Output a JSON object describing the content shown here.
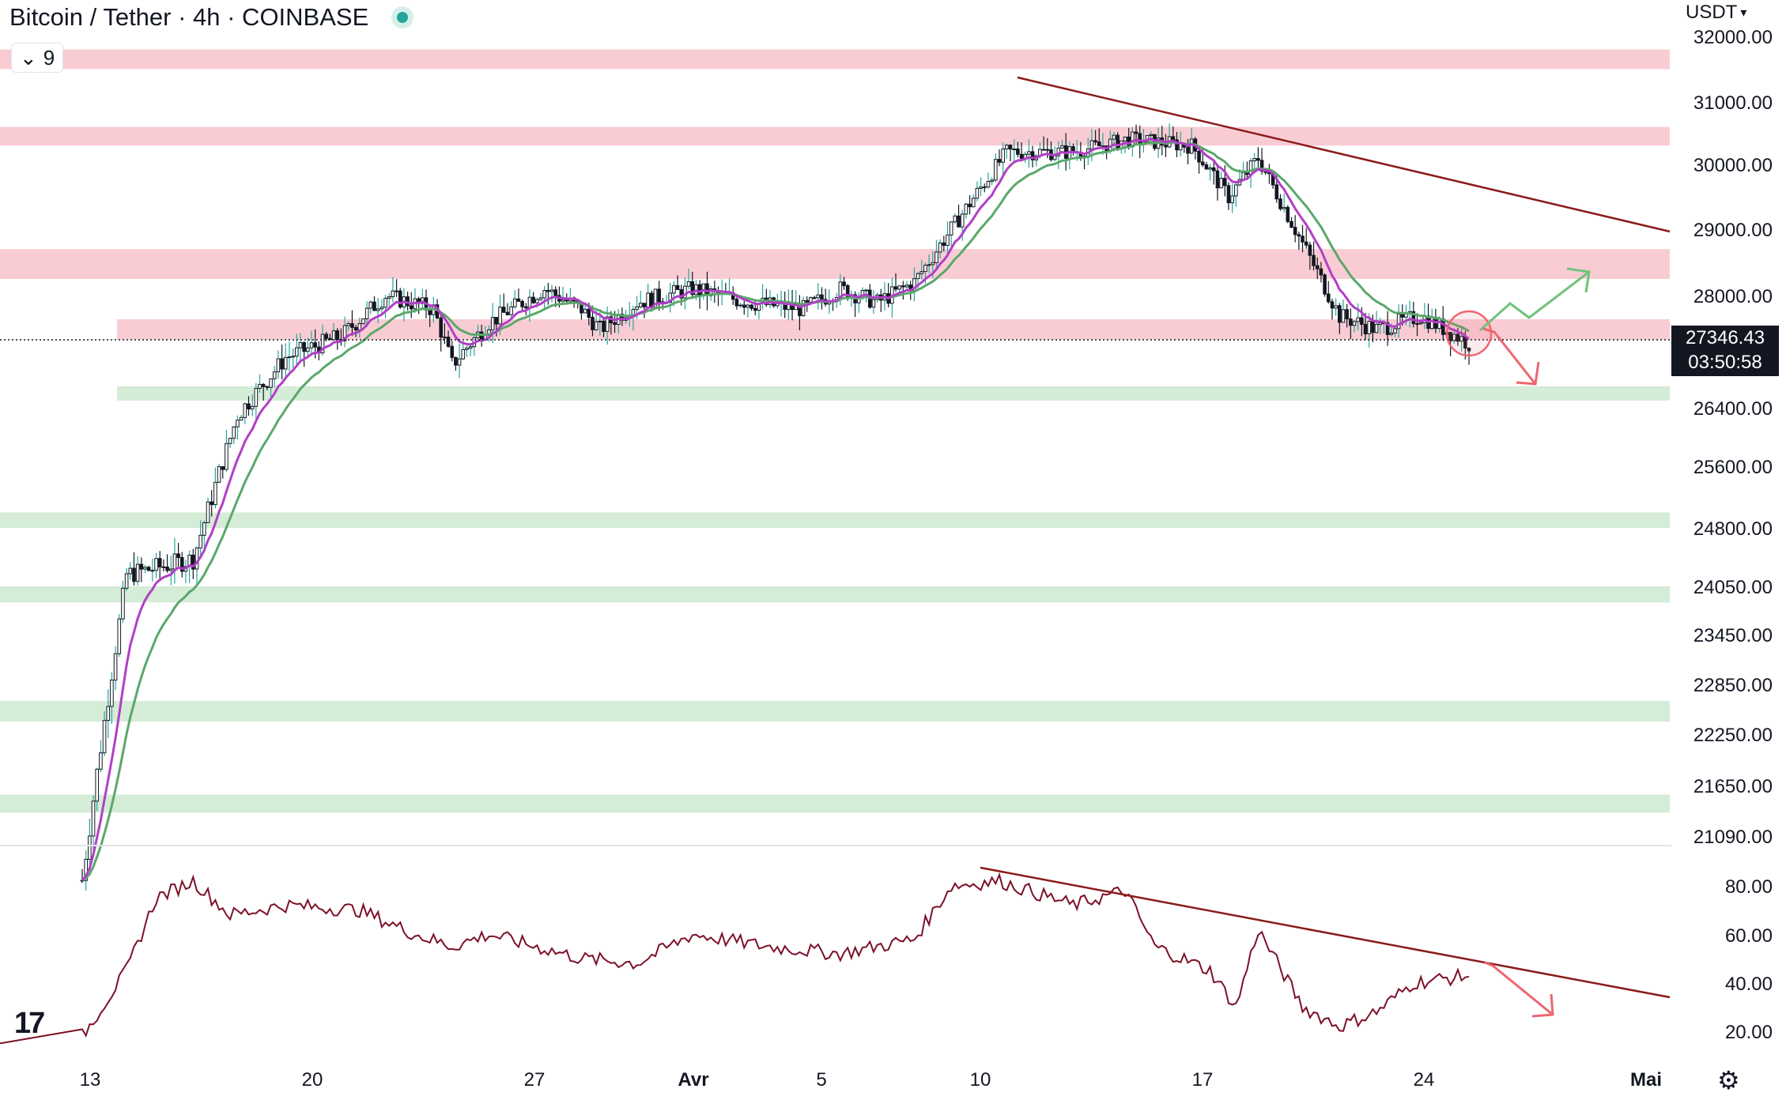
{
  "header": {
    "title": "Bitcoin / Tether · 4h · COINBASE",
    "indicator_badge": "9",
    "currency": "USDT"
  },
  "chart_data": {
    "type": "candlestick",
    "symbol": "Bitcoin / Tether",
    "interval": "4h",
    "exchange": "COINBASE",
    "last_price": "27346.43",
    "countdown": "03:50:58",
    "y_axis_ticks": [
      "32000.00",
      "31000.00",
      "30000.00",
      "29000.00",
      "28000.00",
      "27346.43",
      "26400.00",
      "25600.00",
      "24800.00",
      "24050.00",
      "23450.00",
      "22850.00",
      "22250.00",
      "21650.00",
      "21090.00"
    ],
    "x_axis_ticks": [
      "13",
      "20",
      "27",
      "Avr",
      "5",
      "10",
      "17",
      "24",
      "Mai"
    ],
    "rsi_ticks": [
      "80.00",
      "60.00",
      "40.00",
      "20.00"
    ],
    "resistance_zones": [
      [
        31500,
        31800
      ],
      [
        30300,
        30600
      ],
      [
        28250,
        28700
      ],
      [
        27350,
        27650
      ]
    ],
    "support_zones": [
      [
        26500,
        26700
      ],
      [
        24800,
        25000
      ],
      [
        23850,
        24050
      ],
      [
        22400,
        22650
      ],
      [
        21350,
        21550
      ]
    ],
    "colors": {
      "up": "#26a69a",
      "down": "#131722",
      "ema_fast": "#b13fc7",
      "ema_slow": "#5aa86a",
      "resistance": "#f9ccd3",
      "support": "#d5ecd7",
      "trend": "#8b1a1a",
      "rsi": "#7d1128",
      "bull_arrow": "#70c27a",
      "bear_arrow": "#ee6670"
    }
  },
  "footer": {
    "logo": "17"
  }
}
